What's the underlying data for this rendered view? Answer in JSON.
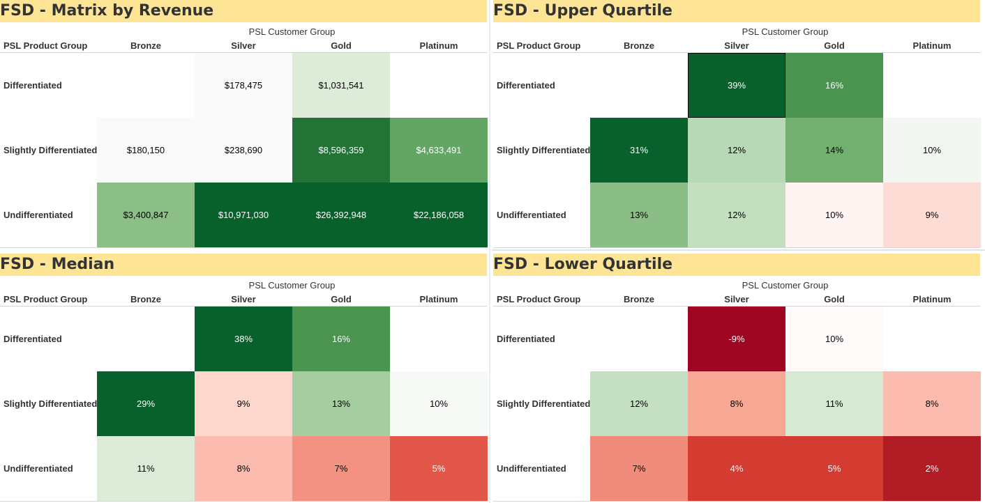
{
  "axis_group_label": "PSL Customer Group",
  "axis_row_label": "PSL Product Group",
  "columns": [
    "Bronze",
    "Silver",
    "Gold",
    "Platinum"
  ],
  "rows": [
    "Differentiated",
    "Slightly Differentiated",
    "Undifferentiated"
  ],
  "chart_data": [
    {
      "type": "heatmap",
      "title": "FSD - Matrix by Revenue",
      "cells": [
        [
          {
            "text": "",
            "bg": "#ffffff",
            "fg": "#000000"
          },
          {
            "text": "$178,475",
            "bg": "#fafafa",
            "fg": "#000000"
          },
          {
            "text": "$1,031,541",
            "bg": "#dcecd9",
            "fg": "#000000"
          },
          {
            "text": "",
            "bg": "#ffffff",
            "fg": "#000000"
          }
        ],
        [
          {
            "text": "$180,150",
            "bg": "#fafafa",
            "fg": "#000000"
          },
          {
            "text": "$238,690",
            "bg": "#fafafa",
            "fg": "#000000"
          },
          {
            "text": "$8,596,359",
            "bg": "#227335",
            "fg": "#ffffff"
          },
          {
            "text": "$4,633,491",
            "bg": "#63a565",
            "fg": "#ffffff"
          }
        ],
        [
          {
            "text": "$3,400,847",
            "bg": "#8bbf86",
            "fg": "#000000"
          },
          {
            "text": "$10,971,030",
            "bg": "#08602b",
            "fg": "#ffffff"
          },
          {
            "text": "$26,392,948",
            "bg": "#08602b",
            "fg": "#ffffff"
          },
          {
            "text": "$22,186,058",
            "bg": "#08602b",
            "fg": "#ffffff"
          }
        ]
      ]
    },
    {
      "type": "heatmap",
      "title": "FSD - Upper Quartile",
      "cells": [
        [
          {
            "text": "",
            "bg": "#ffffff",
            "fg": "#000000"
          },
          {
            "text": "39%",
            "bg": "#08612c",
            "fg": "#ffffff",
            "selected": true
          },
          {
            "text": "16%",
            "bg": "#4a9450",
            "fg": "#ffffff"
          },
          {
            "text": "",
            "bg": "#ffffff",
            "fg": "#000000"
          }
        ],
        [
          {
            "text": "31%",
            "bg": "#08612c",
            "fg": "#ffffff"
          },
          {
            "text": "12%",
            "bg": "#b8d9b6",
            "fg": "#000000"
          },
          {
            "text": "14%",
            "bg": "#73b06f",
            "fg": "#000000"
          },
          {
            "text": "10%",
            "bg": "#f3f7f2",
            "fg": "#000000"
          }
        ],
        [
          {
            "text": "13%",
            "bg": "#8bbe86",
            "fg": "#000000"
          },
          {
            "text": "12%",
            "bg": "#c3dfc0",
            "fg": "#000000"
          },
          {
            "text": "10%",
            "bg": "#fff4f2",
            "fg": "#000000"
          },
          {
            "text": "9%",
            "bg": "#fcdcd5",
            "fg": "#000000"
          }
        ]
      ]
    },
    {
      "type": "heatmap",
      "title": "FSD - Median",
      "cells": [
        [
          {
            "text": "",
            "bg": "#ffffff",
            "fg": "#000000"
          },
          {
            "text": "38%",
            "bg": "#08612c",
            "fg": "#ffffff"
          },
          {
            "text": "16%",
            "bg": "#4a9450",
            "fg": "#ffffff"
          },
          {
            "text": "",
            "bg": "#ffffff",
            "fg": "#000000"
          }
        ],
        [
          {
            "text": "29%",
            "bg": "#08612c",
            "fg": "#ffffff"
          },
          {
            "text": "9%",
            "bg": "#fdd7cd",
            "fg": "#000000"
          },
          {
            "text": "13%",
            "bg": "#a5cda0",
            "fg": "#000000"
          },
          {
            "text": "10%",
            "bg": "#f7f9f6",
            "fg": "#000000"
          }
        ],
        [
          {
            "text": "11%",
            "bg": "#dcecd9",
            "fg": "#000000"
          },
          {
            "text": "8%",
            "bg": "#fbbcaf",
            "fg": "#000000"
          },
          {
            "text": "7%",
            "bg": "#f39282",
            "fg": "#000000"
          },
          {
            "text": "5%",
            "bg": "#e25749",
            "fg": "#ffffff"
          }
        ]
      ]
    },
    {
      "type": "heatmap",
      "title": "FSD - Lower Quartile",
      "cells": [
        [
          {
            "text": "",
            "bg": "#ffffff",
            "fg": "#000000"
          },
          {
            "text": "-9%",
            "bg": "#9e0521",
            "fg": "#ffffff"
          },
          {
            "text": "10%",
            "bg": "#fefafa",
            "fg": "#000000"
          },
          {
            "text": "",
            "bg": "#ffffff",
            "fg": "#000000"
          }
        ],
        [
          {
            "text": "12%",
            "bg": "#c4dfc1",
            "fg": "#000000"
          },
          {
            "text": "8%",
            "bg": "#f8a795",
            "fg": "#000000"
          },
          {
            "text": "11%",
            "bg": "#d6e9d3",
            "fg": "#000000"
          },
          {
            "text": "8%",
            "bg": "#fbbcaf",
            "fg": "#000000"
          }
        ],
        [
          {
            "text": "7%",
            "bg": "#f18c7c",
            "fg": "#000000"
          },
          {
            "text": "4%",
            "bg": "#d43c31",
            "fg": "#ffffff"
          },
          {
            "text": "5%",
            "bg": "#d43c31",
            "fg": "#ffffff"
          },
          {
            "text": "2%",
            "bg": "#b21c25",
            "fg": "#ffffff"
          }
        ]
      ]
    }
  ]
}
